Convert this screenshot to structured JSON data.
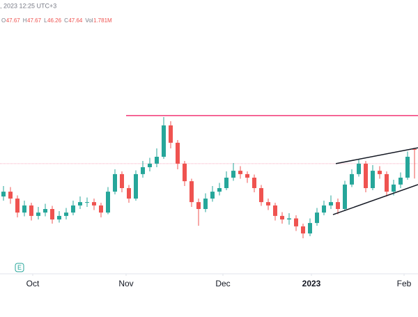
{
  "chart_data": {
    "type": "candlestick",
    "header": ", 2023 12:25 UTC+3",
    "legend_items": [
      {
        "label": "O",
        "value": 47.67
      },
      {
        "label": "H",
        "value": 47.67
      },
      {
        "label": "L",
        "value": 46.26
      },
      {
        "label": "C",
        "value": 47.64
      },
      {
        "label": "Vol",
        "value": "1.781M"
      }
    ],
    "earnings_marker": "E",
    "ylim": [
      41.8,
      54.8
    ],
    "xlim": [
      -0.5,
      59.5
    ],
    "xticks": [
      {
        "value": 4.2,
        "label": "Oct"
      },
      {
        "value": 17.6,
        "label": "Nov"
      },
      {
        "value": 31.5,
        "label": "Dec"
      },
      {
        "value": 44.2,
        "label": "2023"
      },
      {
        "value": 57.5,
        "label": "Feb"
      }
    ],
    "up_color": "#26a69a",
    "down_color": "#ef5350",
    "open": [
      45.4,
      45.63,
      45.3,
      44.63,
      44.97,
      44.47,
      44.63,
      44.8,
      44.3,
      44.47,
      44.63,
      44.97,
      45.13,
      45.13,
      44.97,
      44.63,
      45.63,
      46.47,
      45.8,
      45.3,
      46.47,
      46.8,
      46.97,
      47.3,
      48.8,
      47.97,
      46.97,
      46.13,
      45.13,
      44.8,
      45.3,
      45.63,
      45.8,
      46.3,
      46.63,
      46.47,
      46.3,
      45.8,
      45.13,
      44.97,
      44.47,
      44.3,
      44.35,
      43.97,
      43.63,
      44.13,
      44.63,
      44.97,
      45.13,
      44.8,
      45.97,
      46.47,
      46.97,
      45.8,
      46.63,
      46.47,
      45.63,
      45.97,
      46.3,
      47.67
    ],
    "high": [
      45.9,
      45.85,
      45.45,
      45.2,
      45.1,
      44.9,
      45.05,
      44.95,
      44.7,
      44.85,
      45.2,
      45.4,
      45.35,
      45.3,
      45.1,
      45.85,
      46.7,
      46.6,
      45.95,
      46.65,
      47.1,
      47.25,
      47.7,
      49.2,
      49.0,
      48.1,
      47.1,
      46.25,
      45.3,
      45.55,
      45.9,
      46.05,
      46.6,
      47.0,
      46.85,
      46.6,
      46.45,
      45.95,
      45.3,
      45.1,
      44.65,
      44.6,
      44.5,
      44.1,
      44.35,
      44.85,
      45.2,
      45.45,
      45.3,
      46.15,
      46.7,
      47.2,
      47.1,
      46.9,
      46.85,
      46.6,
      46.2,
      46.55,
      47.55,
      47.67
    ],
    "low": [
      45.2,
      45.05,
      44.4,
      44.45,
      44.25,
      44.3,
      44.45,
      44.1,
      44.15,
      44.3,
      44.5,
      44.8,
      44.9,
      44.75,
      44.4,
      44.55,
      45.5,
      45.6,
      45.1,
      45.2,
      46.3,
      46.6,
      46.8,
      47.2,
      47.7,
      46.7,
      45.9,
      44.9,
      44.0,
      44.65,
      45.15,
      45.45,
      45.7,
      46.15,
      46.25,
      46.05,
      45.6,
      44.95,
      44.75,
      44.25,
      44.1,
      44.05,
      43.75,
      43.4,
      43.5,
      44.0,
      44.5,
      44.8,
      44.55,
      44.7,
      45.85,
      46.35,
      45.6,
      45.7,
      46.25,
      45.4,
      45.45,
      45.8,
      46.2,
      46.26
    ],
    "close": [
      45.63,
      45.3,
      44.63,
      44.97,
      44.47,
      44.63,
      44.8,
      44.3,
      44.47,
      44.63,
      44.97,
      45.13,
      45.13,
      44.97,
      44.63,
      45.63,
      46.47,
      45.8,
      45.3,
      46.47,
      46.8,
      46.97,
      47.3,
      48.8,
      47.97,
      46.97,
      46.13,
      45.13,
      44.8,
      45.3,
      45.63,
      45.8,
      46.3,
      46.63,
      46.47,
      46.3,
      45.8,
      45.13,
      44.97,
      44.47,
      44.3,
      44.35,
      43.97,
      43.63,
      44.13,
      44.63,
      44.97,
      45.13,
      44.8,
      45.97,
      46.47,
      46.97,
      45.8,
      46.63,
      46.47,
      45.63,
      45.97,
      46.3,
      47.3,
      47.64
    ],
    "resistance": {
      "x": [
        17.6,
        59.5
      ],
      "y": 49.27,
      "color": "#f23675"
    },
    "price_line": {
      "y": 46.97,
      "color": "#f7a8bf"
    },
    "trend_lines": [
      {
        "x": [
          47.7,
          59.5
        ],
        "y": [
          46.97,
          47.73
        ],
        "color": "#131722"
      },
      {
        "x": [
          47.3,
          59.5
        ],
        "y": [
          44.53,
          45.97
        ],
        "color": "#131722"
      }
    ]
  }
}
